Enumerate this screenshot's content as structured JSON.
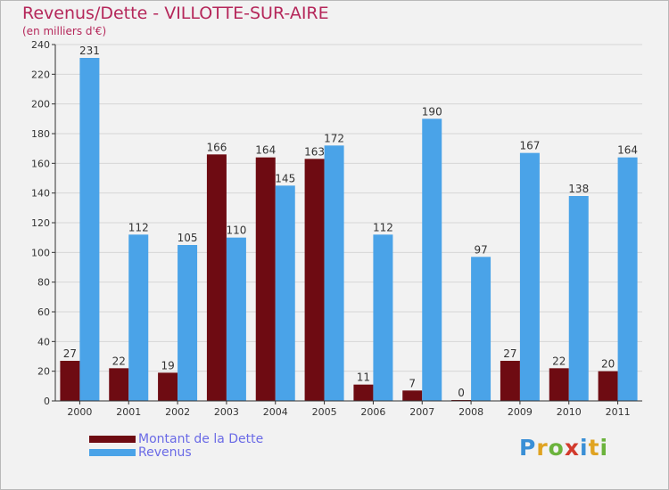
{
  "chart_data": {
    "type": "bar",
    "title": "Revenus/Dette - VILLOTTE-SUR-AIRE",
    "subtitle": "(en milliers d'€)",
    "categories": [
      "2000",
      "2001",
      "2002",
      "2003",
      "2004",
      "2005",
      "2006",
      "2007",
      "2008",
      "2009",
      "2010",
      "2011"
    ],
    "series": [
      {
        "name": "Montant de la Dette",
        "color": "#6e0b12",
        "values": [
          27,
          22,
          19,
          166,
          164,
          163,
          11,
          7,
          0,
          27,
          22,
          20
        ]
      },
      {
        "name": "Revenus",
        "color": "#4aa3e8",
        "values": [
          231,
          112,
          105,
          110,
          145,
          172,
          112,
          190,
          97,
          167,
          138,
          164
        ]
      }
    ],
    "yticks": [
      0,
      20,
      40,
      60,
      80,
      100,
      120,
      140,
      160,
      180,
      200,
      220,
      240
    ],
    "ylim": [
      0,
      240
    ],
    "grid": true,
    "legend_position": "bottom-left"
  },
  "logo": {
    "letters": [
      {
        "char": "P",
        "color": "#3a8fd6"
      },
      {
        "char": "r",
        "color": "#e0a321"
      },
      {
        "char": "o",
        "color": "#6bb33c"
      },
      {
        "char": "x",
        "color": "#d23a2c"
      },
      {
        "char": "i",
        "color": "#3a8fd6"
      },
      {
        "char": "t",
        "color": "#e0a321"
      },
      {
        "char": "i",
        "color": "#6bb33c"
      }
    ]
  }
}
